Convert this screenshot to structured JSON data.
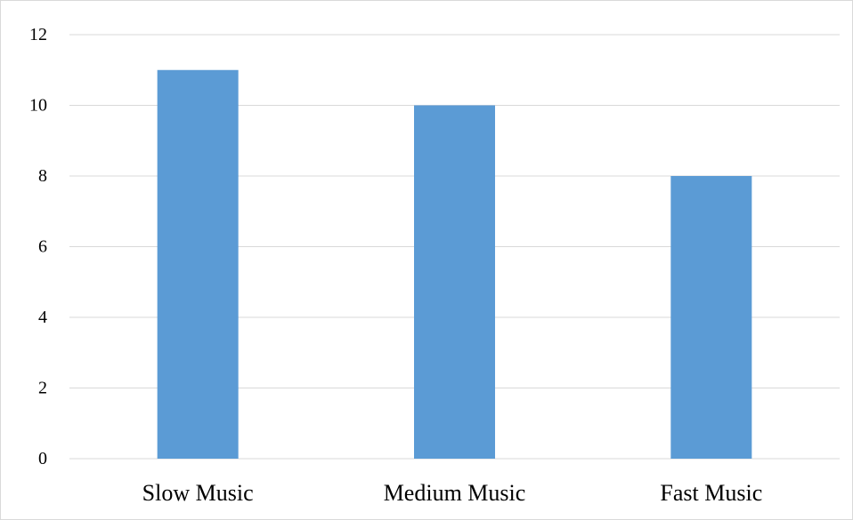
{
  "chart_data": {
    "type": "bar",
    "categories": [
      "Slow Music",
      "Medium Music",
      "Fast Music"
    ],
    "values": [
      11,
      10,
      8
    ],
    "ylim": [
      0,
      12
    ],
    "yticks": [
      0,
      2,
      4,
      6,
      8,
      10,
      12
    ],
    "grid": true,
    "legend": "none"
  },
  "colors": {
    "bar": "#5b9bd5",
    "grid": "#d9d9d9",
    "text": "#000000"
  }
}
